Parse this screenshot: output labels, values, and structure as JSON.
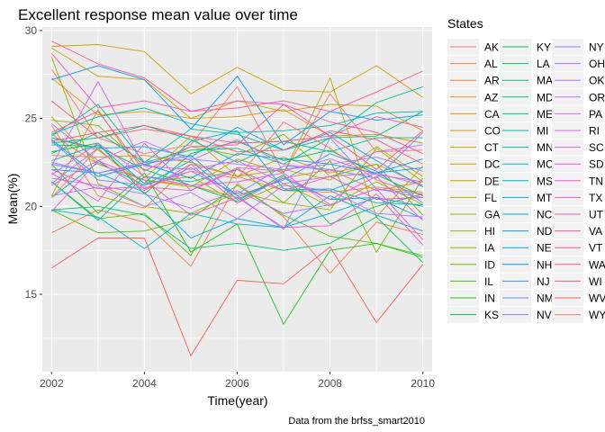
{
  "chart_data": {
    "type": "line",
    "title": "Excellent response mean value  over time",
    "xlabel": "Time(year)",
    "ylabel": "Mean(%)",
    "caption": "Data from the brfss_smart2010",
    "x": [
      2002,
      2003,
      2004,
      2005,
      2006,
      2007,
      2008,
      2009,
      2010
    ],
    "xlim": [
      2001.8,
      2010.2
    ],
    "ylim": [
      10.6,
      30.2
    ],
    "x_ticks": [
      2002,
      2004,
      2006,
      2008,
      2010
    ],
    "y_ticks": [
      15,
      20,
      25,
      30
    ],
    "grid": true,
    "legend": {
      "title": "States",
      "placement": "right",
      "columns": 3
    },
    "series": [
      {
        "name": "AK",
        "color": "#F8766D",
        "values": [
          27.8,
          23.9,
          23.0,
          23.5,
          26.8,
          21.9,
          26.4,
          23.1,
          23.2
        ]
      },
      {
        "name": "AL",
        "color": "#F47D4C",
        "values": [
          18.5,
          19.8,
          19.1,
          16.6,
          21.3,
          19.4,
          16.2,
          19.1,
          18.4
        ]
      },
      {
        "name": "AR",
        "color": "#EF843F",
        "values": [
          24.1,
          22.4,
          21.5,
          21.2,
          20.5,
          21.6,
          22.1,
          20.9,
          21.4
        ]
      },
      {
        "name": "AZ",
        "color": "#EA8A2E",
        "values": [
          24.6,
          20.6,
          19.9,
          22.4,
          21.7,
          20.9,
          20.8,
          21.1,
          20.8
        ]
      },
      {
        "name": "CA",
        "color": "#E3911C",
        "values": [
          22.9,
          22.8,
          22.9,
          22.5,
          21.7,
          22.8,
          21.9,
          22.4,
          21.2
        ]
      },
      {
        "name": "CO",
        "color": "#DB980C",
        "values": [
          27.3,
          25.2,
          25.4,
          25.0,
          25.1,
          25.5,
          24.0,
          24.1,
          23.6
        ]
      },
      {
        "name": "CT",
        "color": "#D39D00",
        "values": [
          29.1,
          29.2,
          28.8,
          26.4,
          27.9,
          26.6,
          26.5,
          28.0,
          26.2
        ]
      },
      {
        "name": "DC",
        "color": "#C9A200",
        "values": [
          29.0,
          27.4,
          27.2,
          25.0,
          26.0,
          25.4,
          25.8,
          25.7,
          24.3
        ]
      },
      {
        "name": "DE",
        "color": "#BEA800",
        "values": [
          20.6,
          25.5,
          21.6,
          24.0,
          21.7,
          22.1,
          21.5,
          23.4,
          21.7
        ]
      },
      {
        "name": "FL",
        "color": "#B2AC00",
        "values": [
          25.1,
          22.4,
          21.5,
          21.1,
          22.7,
          21.9,
          27.3,
          19.4,
          22.3
        ]
      },
      {
        "name": "GA",
        "color": "#A4B100",
        "values": [
          23.9,
          23.2,
          21.3,
          21.7,
          20.2,
          21.3,
          20.0,
          21.4,
          20.1
        ]
      },
      {
        "name": "HI",
        "color": "#94B500",
        "values": [
          28.5,
          21.3,
          20.0,
          19.6,
          20.8,
          20.2,
          19.8,
          23.3,
          21.4
        ]
      },
      {
        "name": "IA",
        "color": "#83B900",
        "values": [
          24.9,
          24.6,
          22.3,
          23.4,
          22.9,
          24.1,
          21.7,
          22.4,
          19.5
        ]
      },
      {
        "name": "ID",
        "color": "#6EBC00",
        "values": [
          21.4,
          19.3,
          19.6,
          17.2,
          22.2,
          20.2,
          22.6,
          17.4,
          21.6
        ]
      },
      {
        "name": "IL",
        "color": "#53BF00",
        "values": [
          19.8,
          18.5,
          18.6,
          19.3,
          21.2,
          19.5,
          18.3,
          17.9,
          17.2
        ]
      },
      {
        "name": "IN",
        "color": "#23C21A",
        "values": [
          22.4,
          19.6,
          21.9,
          17.4,
          19.0,
          13.3,
          17.5,
          17.9,
          17.1
        ]
      },
      {
        "name": "KS",
        "color": "#00C33C",
        "values": [
          23.1,
          23.6,
          20.7,
          23.0,
          23.7,
          22.6,
          23.2,
          21.8,
          20.6
        ]
      },
      {
        "name": "KY",
        "color": "#00C452",
        "values": [
          23.5,
          23.4,
          22.1,
          21.2,
          20.3,
          21.8,
          19.0,
          20.0,
          20.7
        ]
      },
      {
        "name": "LA",
        "color": "#00C466",
        "values": [
          19.8,
          20.0,
          19.5,
          17.6,
          17.9,
          17.5,
          17.9,
          19.4,
          16.8
        ]
      },
      {
        "name": "MA",
        "color": "#00C377",
        "values": [
          23.6,
          23.9,
          24.6,
          23.8,
          22.5,
          23.7,
          23.1,
          23.9,
          23.9
        ]
      },
      {
        "name": "MD",
        "color": "#00C188",
        "values": [
          23.0,
          24.2,
          22.5,
          23.2,
          23.3,
          22.4,
          23.9,
          24.0,
          25.4
        ]
      },
      {
        "name": "ME",
        "color": "#00BF97",
        "values": [
          24.0,
          25.8,
          22.5,
          24.4,
          24.1,
          23.2,
          23.9,
          25.9,
          26.8
        ]
      },
      {
        "name": "MI",
        "color": "#00BCA6",
        "values": [
          21.4,
          19.2,
          21.7,
          21.4,
          22.1,
          20.9,
          21.0,
          20.2,
          20.1
        ]
      },
      {
        "name": "MN",
        "color": "#00B9B4",
        "values": [
          24.1,
          25.1,
          25.6,
          24.7,
          24.2,
          24.3,
          24.6,
          25.3,
          25.4
        ]
      },
      {
        "name": "MO",
        "color": "#00B6C1",
        "values": [
          20.5,
          22.5,
          21.2,
          22.6,
          20.4,
          21.6,
          20.4,
          20.5,
          20.0
        ]
      },
      {
        "name": "MS",
        "color": "#00B2CE",
        "values": [
          19.8,
          19.4,
          17.6,
          19.6,
          19.0,
          18.8,
          20.6,
          19.5,
          18.6
        ]
      },
      {
        "name": "MT",
        "color": "#00AEDA",
        "values": [
          22.6,
          23.5,
          21.3,
          23.7,
          24.3,
          21.0,
          20.9,
          21.9,
          22.7
        ]
      },
      {
        "name": "NC",
        "color": "#00A9E5",
        "values": [
          23.9,
          23.3,
          23.4,
          22.8,
          24.5,
          23.2,
          24.2,
          22.6,
          21.1
        ]
      },
      {
        "name": "ND",
        "color": "#00A4EF",
        "values": [
          22.1,
          21.9,
          20.8,
          18.2,
          19.3,
          18.8,
          19.6,
          20.5,
          19.3
        ]
      },
      {
        "name": "NE",
        "color": "#009EF8",
        "values": [
          23.8,
          21.7,
          22.4,
          21.6,
          23.0,
          22.7,
          22.4,
          21.9,
          22.2
        ]
      },
      {
        "name": "NH",
        "color": "#0097FF",
        "values": [
          27.2,
          28.0,
          27.2,
          24.4,
          27.4,
          23.5,
          25.4,
          24.9,
          25.2
        ]
      },
      {
        "name": "NJ",
        "color": "#4490FF",
        "values": [
          22.4,
          21.9,
          22.4,
          22.9,
          20.6,
          21.5,
          23.0,
          22.0,
          20.2
        ]
      },
      {
        "name": "NM",
        "color": "#6B8AFF",
        "values": [
          23.7,
          21.5,
          21.2,
          22.0,
          20.7,
          22.3,
          22.1,
          21.6,
          24.2
        ]
      },
      {
        "name": "NV",
        "color": "#8683FF",
        "values": [
          21.3,
          23.3,
          21.0,
          22.2,
          20.6,
          18.7,
          23.9,
          21.0,
          20.7
        ]
      },
      {
        "name": "NY",
        "color": "#9A7CFF",
        "values": [
          22.5,
          21.9,
          22.5,
          22.7,
          22.4,
          22.1,
          22.4,
          22.8,
          22.0
        ]
      },
      {
        "name": "OH",
        "color": "#AB76FF",
        "values": [
          21.6,
          21.2,
          20.7,
          19.9,
          20.9,
          19.6,
          20.1,
          21.0,
          20.5
        ]
      },
      {
        "name": "OK",
        "color": "#B971FF",
        "values": [
          20.6,
          21.1,
          20.0,
          20.8,
          19.3,
          21.2,
          20.9,
          19.6,
          19.4
        ]
      },
      {
        "name": "OR",
        "color": "#C56CFF",
        "values": [
          24.7,
          22.6,
          23.7,
          22.6,
          23.8,
          22.4,
          22.0,
          23.1,
          23.5
        ]
      },
      {
        "name": "PA",
        "color": "#D166FA",
        "values": [
          22.3,
          27.1,
          22.3,
          22.1,
          22.6,
          21.3,
          21.7,
          21.9,
          21.2
        ]
      },
      {
        "name": "RI",
        "color": "#DA62F1",
        "values": [
          21.9,
          20.3,
          23.6,
          20.9,
          22.2,
          22.0,
          22.7,
          21.8,
          21.4
        ]
      },
      {
        "name": "SC",
        "color": "#E35EE7",
        "values": [
          21.8,
          23.6,
          21.7,
          21.2,
          21.4,
          21.9,
          20.1,
          21.0,
          18.1
        ]
      },
      {
        "name": "SD",
        "color": "#EA5ADC",
        "values": [
          21.2,
          22.6,
          20.9,
          22.4,
          20.2,
          21.7,
          20.4,
          21.7,
          19.2
        ]
      },
      {
        "name": "TN",
        "color": "#F057D0",
        "values": [
          19.7,
          22.6,
          21.5,
          19.5,
          20.5,
          18.8,
          18.9,
          20.7,
          17.8
        ]
      },
      {
        "name": "TX",
        "color": "#F455C3",
        "values": [
          22.1,
          21.0,
          21.1,
          20.9,
          22.1,
          20.9,
          21.7,
          20.4,
          20.5
        ]
      },
      {
        "name": "UT",
        "color": "#F854B5",
        "values": [
          28.7,
          25.6,
          26.0,
          25.4,
          26.0,
          25.8,
          24.0,
          25.1,
          24.5
        ]
      },
      {
        "name": "VA",
        "color": "#FA54A5",
        "values": [
          24.2,
          25.4,
          22.0,
          23.4,
          23.5,
          25.8,
          24.8,
          24.2,
          23.0
        ]
      },
      {
        "name": "VT",
        "color": "#FC5595",
        "values": [
          29.4,
          28.1,
          27.3,
          25.4,
          25.6,
          26.0,
          25.4,
          26.5,
          27.7
        ]
      },
      {
        "name": "WA",
        "color": "#FC5784",
        "values": [
          23.7,
          24.2,
          24.6,
          24.0,
          23.6,
          23.7,
          24.0,
          22.1,
          24.3
        ]
      },
      {
        "name": "WI",
        "color": "#FC5A72",
        "values": [
          26.0,
          23.9,
          24.4,
          24.0,
          23.1,
          23.2,
          24.3,
          23.8,
          22.4
        ]
      },
      {
        "name": "WV",
        "color": "#F95D5F",
        "values": [
          16.5,
          18.2,
          18.2,
          11.5,
          15.8,
          15.6,
          17.7,
          13.4,
          16.7
        ]
      },
      {
        "name": "WY",
        "color": "#F8766D",
        "values": [
          20.5,
          23.3,
          21.0,
          22.0,
          21.6,
          24.8,
          23.3,
          21.5,
          20.6
        ]
      }
    ]
  }
}
